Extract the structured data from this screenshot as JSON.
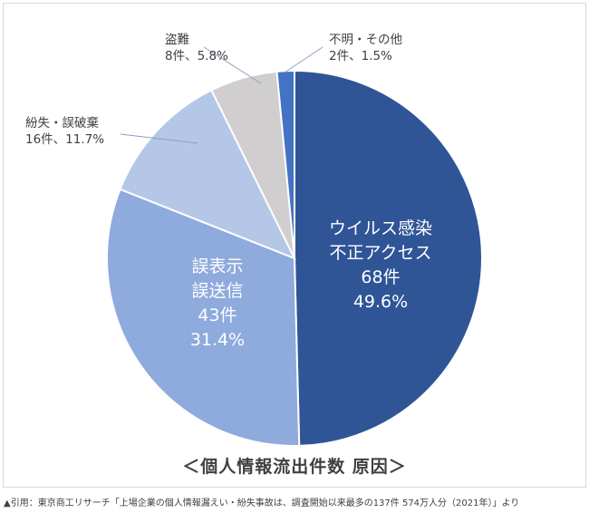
{
  "chart_data": {
    "type": "pie",
    "title": "＜個人情報流出件数 原因＞",
    "slices": [
      {
        "label": [
          "ウイルス感染",
          "不正アクセス"
        ],
        "count": "68件",
        "percent": "49.6%",
        "value": 49.6,
        "color": "#2f5597",
        "label_inside": true
      },
      {
        "label": [
          "誤表示",
          "誤送信"
        ],
        "count": "43件",
        "percent": "31.4%",
        "value": 31.4,
        "color": "#8faadc",
        "label_inside": true
      },
      {
        "label": [
          "紛失・誤破棄"
        ],
        "count": "16件",
        "percent": "11.7%",
        "value": 11.7,
        "color": "#b4c7e7",
        "label_inside": false
      },
      {
        "label": [
          "盗難"
        ],
        "count": "8件",
        "percent": "5.8%",
        "value": 5.8,
        "color": "#d0cece",
        "label_inside": false
      },
      {
        "label": [
          "不明・その他"
        ],
        "count": "2件",
        "percent": "1.5%",
        "value": 1.5,
        "color": "#4472c4",
        "label_inside": false
      }
    ]
  },
  "source_note": "▲引用：東京商工リサーチ「上場企業の個人情報漏えい・紛失事故は、調査開始以来最多の137件 574万人分（2021年）」より"
}
